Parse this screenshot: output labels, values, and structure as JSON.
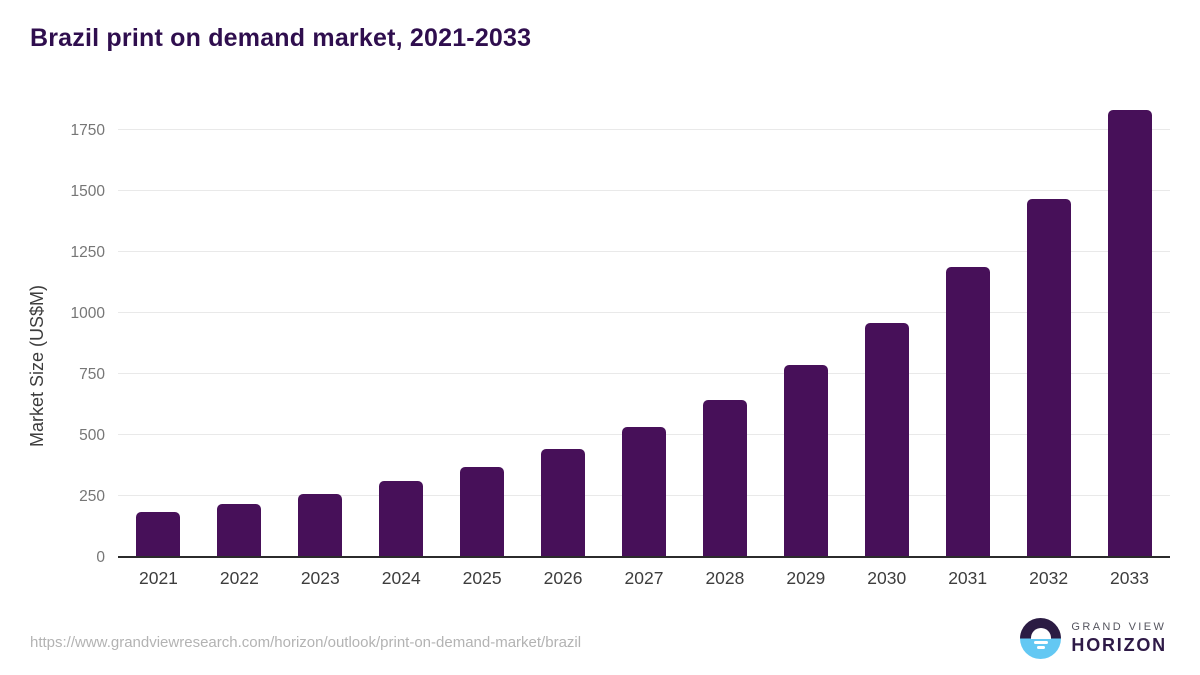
{
  "page": {
    "title": "Brazil print on demand market, 2021-2033"
  },
  "chart_data": {
    "type": "bar",
    "title": "Brazil print on demand market, 2021-2033",
    "categories": [
      "2021",
      "2022",
      "2023",
      "2024",
      "2025",
      "2026",
      "2027",
      "2028",
      "2029",
      "2030",
      "2031",
      "2032",
      "2033"
    ],
    "values": [
      181,
      215,
      255,
      306,
      365,
      437,
      527,
      638,
      782,
      957,
      1183,
      1463,
      1829
    ],
    "unit": "US$M",
    "xlabel": "",
    "ylabel": "Market Size (US$M)",
    "yticks": [
      0,
      250,
      500,
      750,
      1000,
      1250,
      1500,
      1750
    ],
    "ylim": [
      0,
      1750
    ],
    "grid": true,
    "legend_position": "none",
    "bar_color": "#471059",
    "gridline_color": "#e9e9e9",
    "axis_line_color": "#2b2b2b",
    "ytick_label_color": "#767676",
    "xtick_label_color": "#3d3d3d"
  },
  "footer": {
    "source_url": "https://www.grandviewresearch.com/horizon/outlook/print-on-demand-market/brazil",
    "logo": {
      "line1": "GRAND VIEW",
      "line2": "HORIZON",
      "icon": "horizon-sun-icon",
      "dark_color": "#2b1b43",
      "blue_color": "#63c8f3"
    }
  },
  "colors": {
    "background": "#ffffff",
    "title_text": "#2f0e4e",
    "axis_title_text": "#3d3d3d",
    "url_text": "#b3b3b3"
  }
}
